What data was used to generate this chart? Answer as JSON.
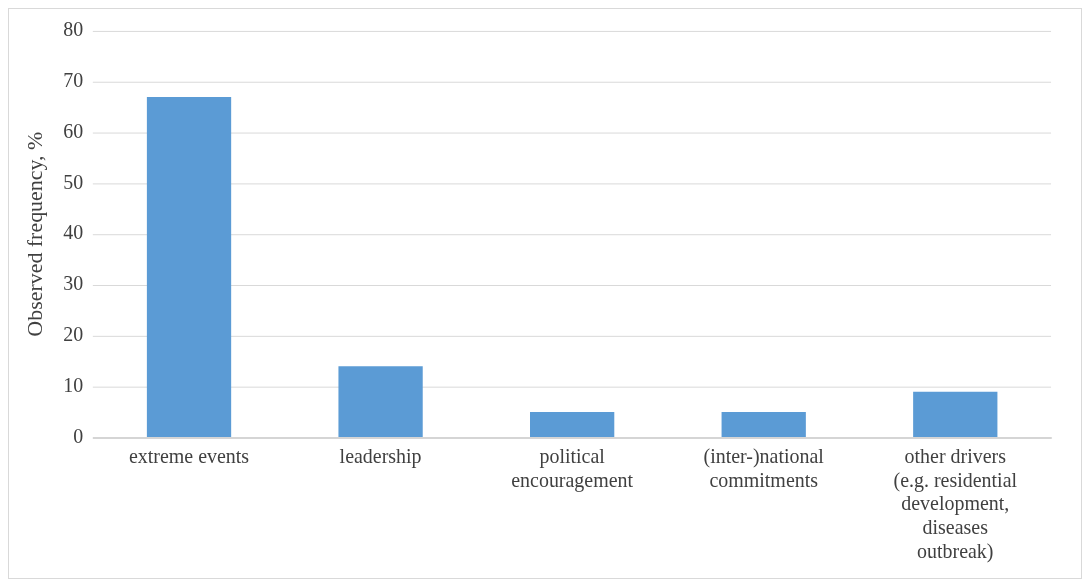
{
  "chart_data": {
    "type": "bar",
    "ylabel": "Observed frequency, %",
    "categories": [
      "extreme events",
      "leadership",
      "political encouragement",
      "(inter-)national commitments",
      "other drivers (e.g. residential development, diseases outbreak)"
    ],
    "values": [
      67,
      14,
      5,
      5,
      9
    ],
    "color": "#5b9bd5",
    "ylim": [
      0,
      80
    ],
    "yticks": [
      0,
      10,
      20,
      30,
      40,
      50,
      60,
      70,
      80
    ],
    "grid": "y"
  }
}
